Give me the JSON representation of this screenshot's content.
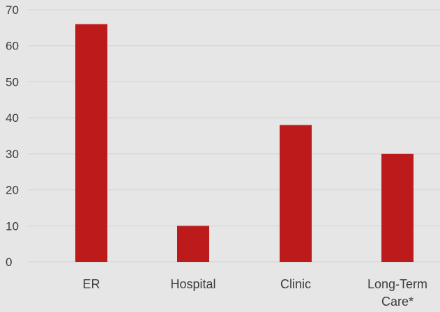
{
  "chart_data": {
    "type": "bar",
    "title": "",
    "xlabel": "",
    "ylabel": "",
    "categories": [
      "ER",
      "Hospital",
      "Clinic",
      "Long-Term Care*"
    ],
    "category_lines": [
      [
        "ER"
      ],
      [
        "Hospital"
      ],
      [
        "Clinic"
      ],
      [
        "Long-Term",
        "Care*"
      ]
    ],
    "values": [
      66,
      10,
      38,
      30
    ],
    "ylim": [
      0,
      70
    ],
    "yticks": [
      "0",
      "10",
      "20",
      "30",
      "40",
      "50",
      "60",
      "70"
    ],
    "grid": true,
    "legend": "none",
    "colors": {
      "bar": "#bd1b1b",
      "grid": "#d2d2d2",
      "background": "#e6e6e6"
    }
  }
}
